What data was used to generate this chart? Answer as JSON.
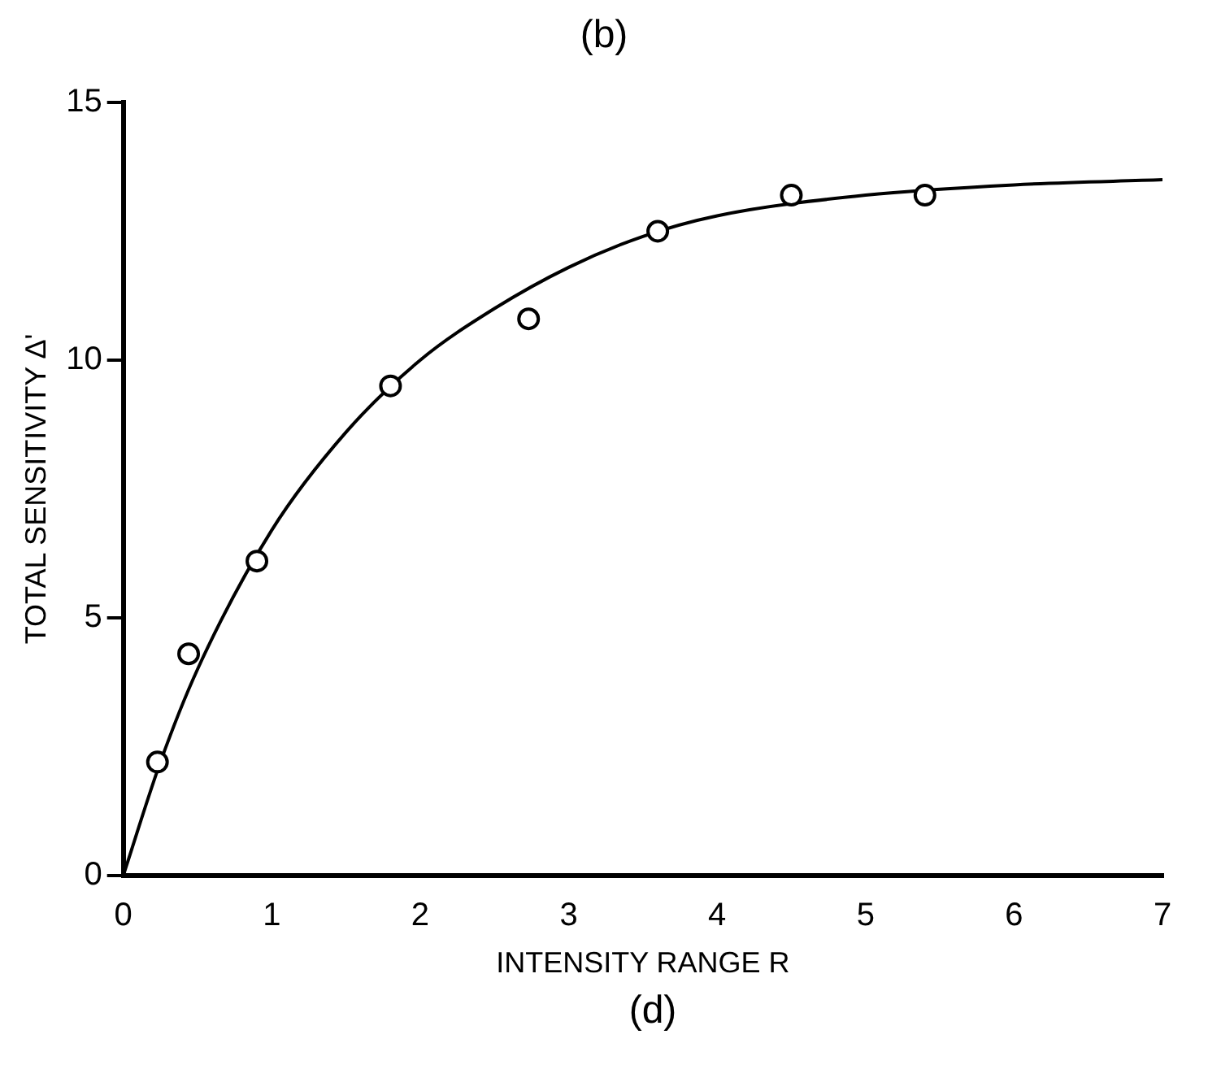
{
  "chart_data": {
    "type": "scatter",
    "xlabel": "INTENSITY RANGE R",
    "ylabel": "TOTAL SENSITIVITY Δ'",
    "annotations": [
      "(b)",
      "(d)"
    ],
    "xlim": [
      0,
      7
    ],
    "ylim": [
      0,
      15
    ],
    "xticks": [
      0,
      1,
      2,
      3,
      4,
      5,
      6,
      7
    ],
    "yticks": [
      0,
      5,
      10,
      15
    ],
    "grid": false,
    "legend": false,
    "series": [
      {
        "color": "#000000",
        "marker": "circle",
        "x": [
          0.23,
          0.44,
          0.9,
          1.8,
          2.73,
          3.6,
          4.5,
          5.4
        ],
        "values": [
          2.2,
          4.3,
          6.1,
          9.5,
          10.8,
          12.5,
          13.2,
          13.2
        ]
      },
      {
        "type": "line",
        "color": "#000000",
        "marker": "none",
        "line_style": "solid",
        "x": [
          0,
          0.25,
          0.5,
          1,
          1.5,
          2,
          2.5,
          3,
          3.5,
          4,
          5,
          6,
          7
        ],
        "values": [
          0,
          2.2,
          4.0,
          6.7,
          8.6,
          10.0,
          11.0,
          11.8,
          12.4,
          12.8,
          13.2,
          13.4,
          13.5
        ]
      }
    ]
  }
}
